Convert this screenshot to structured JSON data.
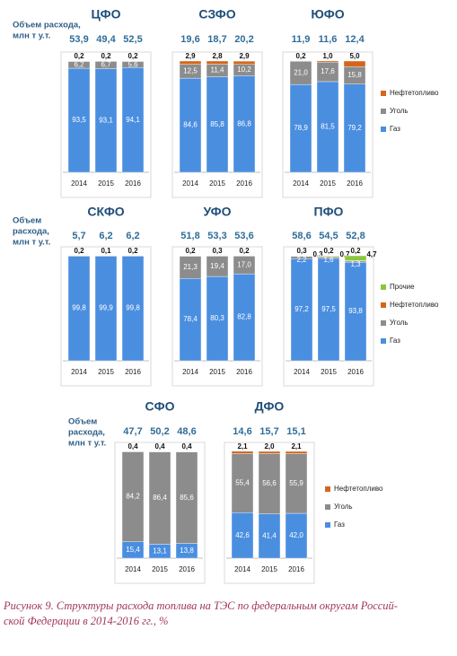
{
  "chart_data": [
    {
      "type": "bar",
      "title": "ЦФО",
      "axis_label": [
        "Объем расхода,",
        "млн т у.т."
      ],
      "categories": [
        "2014",
        "2015",
        "2016"
      ],
      "ylim": [
        0,
        100
      ],
      "totals": [
        53.9,
        49.4,
        52.5
      ],
      "totals_labels": [
        "53,9",
        "49,4",
        "52,5"
      ],
      "series": [
        {
          "color": "#4a8ee0",
          "values": [
            93.5,
            93.1,
            94.1
          ],
          "value_labels": [
            "93,5",
            "93,1",
            "94,1"
          ]
        },
        {
          "color": "#8c8c8c",
          "values": [
            6.2,
            6.7,
            5.6
          ],
          "value_labels": [
            "6,2",
            "6,7",
            "5,6"
          ]
        },
        {
          "color": "#d4661c",
          "values": [
            0.2,
            0.2,
            0.2
          ],
          "value_labels": [
            "0,2",
            "0,2",
            "0,2"
          ]
        }
      ]
    },
    {
      "type": "bar",
      "title": "СЗФО",
      "categories": [
        "2014",
        "2015",
        "2016"
      ],
      "ylim": [
        0,
        100
      ],
      "totals": [
        19.6,
        18.7,
        20.2
      ],
      "totals_labels": [
        "19,6",
        "18,7",
        "20,2"
      ],
      "series": [
        {
          "color": "#4a8ee0",
          "values": [
            84.6,
            85.8,
            86.8
          ],
          "value_labels": [
            "84,6",
            "85,8",
            "86,8"
          ]
        },
        {
          "color": "#8c8c8c",
          "values": [
            12.5,
            11.4,
            10.2
          ],
          "value_labels": [
            "12,5",
            "11,4",
            "10,2"
          ]
        },
        {
          "color": "#d4661c",
          "values": [
            2.9,
            2.8,
            2.9
          ],
          "value_labels": [
            "2,9",
            "2,8",
            "2,9"
          ]
        }
      ]
    },
    {
      "type": "bar",
      "title": "ЮФО",
      "categories": [
        "2014",
        "2015",
        "2016"
      ],
      "ylim": [
        0,
        100
      ],
      "legend": true,
      "totals": [
        11.9,
        11.6,
        12.4
      ],
      "totals_labels": [
        "11,9",
        "11,6",
        "12,4"
      ],
      "series": [
        {
          "name": "Газ",
          "color": "#4a8ee0",
          "values": [
            78.9,
            81.5,
            79.2
          ],
          "value_labels": [
            "78,9",
            "81,5",
            "79,2"
          ]
        },
        {
          "name": "Уголь",
          "color": "#8c8c8c",
          "values": [
            21.0,
            17.6,
            15.8
          ],
          "value_labels": [
            "21,0",
            "17,6",
            "15,8"
          ]
        },
        {
          "name": "Нефтетопливо",
          "color": "#d4661c",
          "values": [
            0.2,
            1.0,
            5.0
          ],
          "value_labels": [
            "0,2",
            "1,0",
            "5,0"
          ]
        }
      ]
    },
    {
      "type": "bar",
      "title": "СКФО",
      "axis_label": [
        "Объем",
        "расхода,",
        "млн т у.т."
      ],
      "categories": [
        "2014",
        "2015",
        "2016"
      ],
      "ylim": [
        0,
        100
      ],
      "totals": [
        5.7,
        6.2,
        6.2
      ],
      "totals_labels": [
        "5,7",
        "6,2",
        "6,2"
      ],
      "series": [
        {
          "color": "#4a8ee0",
          "values": [
            99.8,
            99.9,
            99.8
          ],
          "value_labels": [
            "99,8",
            "99,9",
            "99,8"
          ]
        },
        {
          "color": "#d4661c",
          "values": [
            0.2,
            0.1,
            0.2
          ],
          "value_labels": [
            "0,2",
            "0,1",
            "0,2"
          ]
        }
      ]
    },
    {
      "type": "bar",
      "title": "УФО",
      "categories": [
        "2014",
        "2015",
        "2016"
      ],
      "ylim": [
        0,
        100
      ],
      "totals": [
        51.8,
        53.3,
        53.6
      ],
      "totals_labels": [
        "51,8",
        "53,3",
        "53,6"
      ],
      "series": [
        {
          "color": "#4a8ee0",
          "values": [
            78.4,
            80.3,
            82.8
          ],
          "value_labels": [
            "78,4",
            "80,3",
            "82,8"
          ]
        },
        {
          "color": "#8c8c8c",
          "values": [
            21.3,
            19.4,
            17.0
          ],
          "value_labels": [
            "21,3",
            "19,4",
            "17,0"
          ]
        },
        {
          "color": "#d4661c",
          "values": [
            0.2,
            0.3,
            0.2
          ],
          "value_labels": [
            "0,2",
            "0,3",
            "0,2"
          ]
        }
      ]
    },
    {
      "type": "bar",
      "title": "ПФО",
      "categories": [
        "2014",
        "2015",
        "2016"
      ],
      "ylim": [
        0,
        100
      ],
      "legend": true,
      "totals": [
        58.6,
        54.5,
        52.8
      ],
      "totals_labels": [
        "58,6",
        "54,5",
        "52,8"
      ],
      "series": [
        {
          "name": "Газ",
          "color": "#4a8ee0",
          "values": [
            97.2,
            97.5,
            93.8
          ],
          "value_labels": [
            "97,2",
            "97,5",
            "93,8"
          ]
        },
        {
          "name": "Уголь",
          "color": "#8c8c8c",
          "values": [
            2.2,
            1.6,
            1.3
          ],
          "value_labels": [
            "2,2",
            "1,6",
            "1,3"
          ]
        },
        {
          "name": "Нефтетопливо",
          "color": "#d4661c",
          "values": [
            0.3,
            0.2,
            0.2
          ],
          "value_labels": [
            "0,3",
            "0,2",
            "0,2"
          ]
        },
        {
          "name": "Прочие",
          "color": "#8cc63f",
          "values": [
            0.3,
            0.7,
            4.7
          ],
          "value_labels": [
            "0,3",
            "0,7",
            "4,7"
          ]
        }
      ]
    },
    {
      "type": "bar",
      "title": "СФО",
      "axis_label": [
        "Объем",
        "расхода,",
        "млн т у.т."
      ],
      "categories": [
        "2014",
        "2015",
        "2016"
      ],
      "ylim": [
        0,
        100
      ],
      "totals": [
        47.7,
        50.2,
        48.6
      ],
      "totals_labels": [
        "47,7",
        "50,2",
        "48,6"
      ],
      "series": [
        {
          "color": "#4a8ee0",
          "values": [
            15.4,
            13.1,
            13.8
          ],
          "value_labels": [
            "15,4",
            "13,1",
            "13,8"
          ]
        },
        {
          "color": "#8c8c8c",
          "values": [
            84.2,
            86.4,
            85.6
          ],
          "value_labels": [
            "84,2",
            "86,4",
            "85,6"
          ]
        },
        {
          "color": "#d4661c",
          "values": [
            0.4,
            0.4,
            0.4
          ],
          "value_labels": [
            "0,4",
            "0,4",
            "0,4"
          ]
        }
      ]
    },
    {
      "type": "bar",
      "title": "ДФО",
      "categories": [
        "2014",
        "2015",
        "2016"
      ],
      "ylim": [
        0,
        100
      ],
      "legend": true,
      "totals": [
        14.6,
        15.7,
        15.1
      ],
      "totals_labels": [
        "14,6",
        "15,7",
        "15,1"
      ],
      "series": [
        {
          "name": "Газ",
          "color": "#4a8ee0",
          "values": [
            42.6,
            41.4,
            42.0
          ],
          "value_labels": [
            "42,6",
            "41,4",
            "42,0"
          ]
        },
        {
          "name": "Уголь",
          "color": "#8c8c8c",
          "values": [
            55.4,
            56.6,
            55.9
          ],
          "value_labels": [
            "55,4",
            "56,6",
            "55,9"
          ]
        },
        {
          "name": "Нефтетопливо",
          "color": "#d4661c",
          "values": [
            2.1,
            2.0,
            2.1
          ],
          "value_labels": [
            "2,1",
            "2,0",
            "2,1"
          ]
        }
      ]
    }
  ],
  "caption": [
    "Рисунок 9. Структуры расхода топлива на ТЭС по федеральным округам Россий-",
    "ской Федерации в 2014-2016 гг., %"
  ]
}
